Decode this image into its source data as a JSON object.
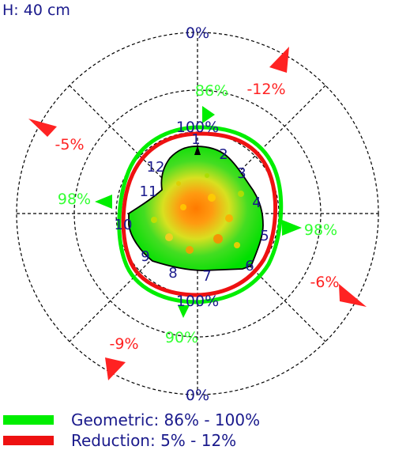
{
  "header": {
    "height_label": "H: 40 cm"
  },
  "colors": {
    "geometric": "#00ee00",
    "reduction": "#ee1111",
    "text": "#1a1a8c",
    "bright_green_text": "#33ff33",
    "red_text": "#ff2222"
  },
  "chart_data": {
    "type": "polar",
    "ring_labels": {
      "inner": "100%",
      "inner_bottom": "100%",
      "outer_top": "0%",
      "outer_bottom": "0%"
    },
    "sector_numbers": [
      "1",
      "2",
      "3",
      "4",
      "5",
      "6",
      "7",
      "8",
      "9",
      "10",
      "11",
      "12"
    ],
    "geometric": {
      "label": "Geometric: 86% - 100%",
      "annotations": [
        {
          "text": "86%",
          "position": "top"
        },
        {
          "text": "98%",
          "position": "right"
        },
        {
          "text": "90%",
          "position": "bottom"
        },
        {
          "text": "98%",
          "position": "left"
        }
      ]
    },
    "reduction": {
      "label": "Reduction: 5% - 12%",
      "annotations": [
        {
          "text": "-12%",
          "position": "top-right"
        },
        {
          "text": "-6%",
          "position": "bottom-right"
        },
        {
          "text": "-9%",
          "position": "bottom-left"
        },
        {
          "text": "-5%",
          "position": "top-left"
        }
      ]
    }
  }
}
